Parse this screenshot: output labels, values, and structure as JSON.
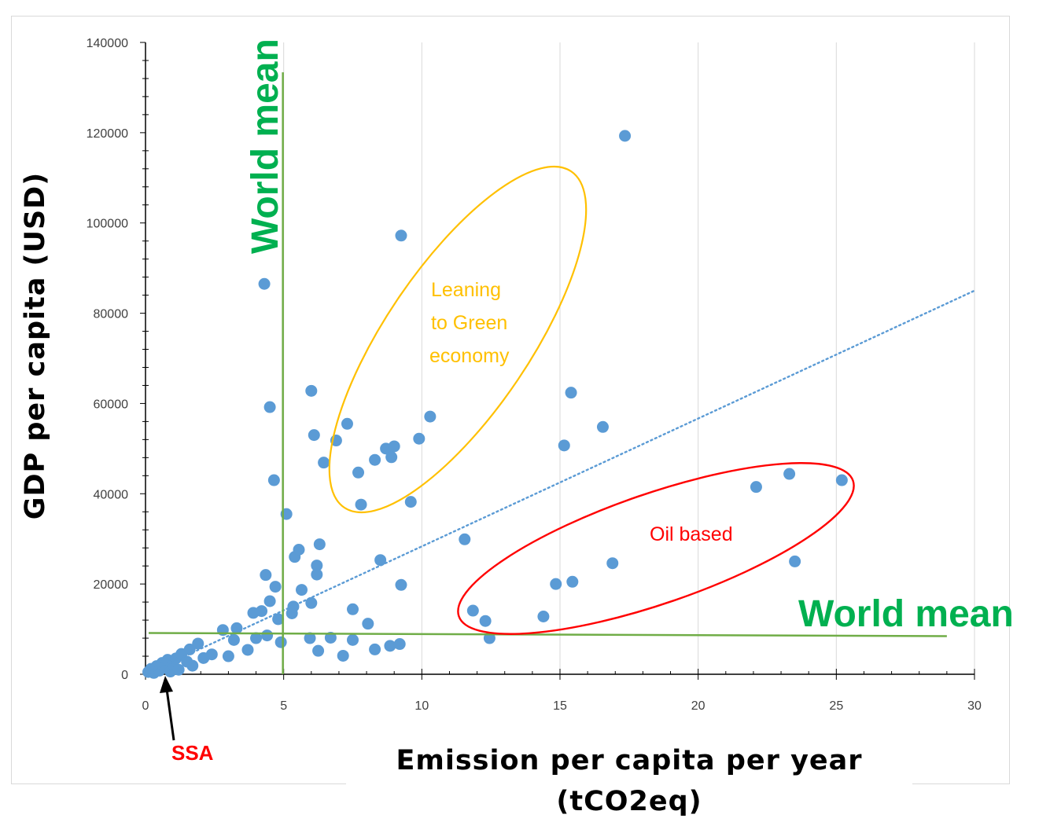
{
  "chart_data": {
    "type": "scatter",
    "xlabel": "Emission per capita per year (tCO2eq)",
    "ylabel": "GDP per capita (USD)",
    "xlim": [
      0,
      30
    ],
    "ylim": [
      0,
      140000
    ],
    "x_ticks": [
      0,
      5,
      10,
      15,
      20,
      25,
      30
    ],
    "y_ticks": [
      0,
      20000,
      40000,
      60000,
      80000,
      100000,
      120000,
      140000
    ],
    "grid": "vertical",
    "point_color": "#5b9bd5",
    "trendline": {
      "style": "dotted",
      "color": "#5b9bd5",
      "from": [
        0,
        0
      ],
      "to": [
        30,
        85000
      ]
    },
    "points": [
      [
        0.1,
        500
      ],
      [
        0.2,
        1200
      ],
      [
        0.3,
        300
      ],
      [
        0.4,
        1800
      ],
      [
        0.5,
        800
      ],
      [
        0.6,
        2500
      ],
      [
        0.7,
        1500
      ],
      [
        0.8,
        3200
      ],
      [
        0.9,
        600
      ],
      [
        1.0,
        2100
      ],
      [
        1.1,
        3500
      ],
      [
        1.2,
        1000
      ],
      [
        1.3,
        4500
      ],
      [
        1.5,
        2800
      ],
      [
        1.6,
        5500
      ],
      [
        1.7,
        1900
      ],
      [
        1.9,
        6800
      ],
      [
        2.1,
        3600
      ],
      [
        2.4,
        4400
      ],
      [
        2.8,
        9800
      ],
      [
        3.0,
        4000
      ],
      [
        3.2,
        7600
      ],
      [
        3.3,
        10200
      ],
      [
        3.7,
        5400
      ],
      [
        3.9,
        13600
      ],
      [
        4.0,
        8000
      ],
      [
        4.2,
        14000
      ],
      [
        4.3,
        86500
      ],
      [
        4.35,
        22000
      ],
      [
        4.4,
        8600
      ],
      [
        4.5,
        59200
      ],
      [
        4.5,
        16200
      ],
      [
        4.65,
        43000
      ],
      [
        4.7,
        19400
      ],
      [
        4.8,
        12200
      ],
      [
        4.9,
        7100
      ],
      [
        5.1,
        35500
      ],
      [
        5.3,
        13500
      ],
      [
        5.35,
        15000
      ],
      [
        5.4,
        26000
      ],
      [
        5.55,
        27600
      ],
      [
        5.65,
        18700
      ],
      [
        5.95,
        8000
      ],
      [
        6.0,
        62800
      ],
      [
        6.0,
        15800
      ],
      [
        6.1,
        53000
      ],
      [
        6.2,
        24100
      ],
      [
        6.2,
        22100
      ],
      [
        6.25,
        5200
      ],
      [
        6.3,
        28800
      ],
      [
        6.45,
        46900
      ],
      [
        6.7,
        8100
      ],
      [
        6.9,
        51800
      ],
      [
        7.15,
        4100
      ],
      [
        7.3,
        55500
      ],
      [
        7.5,
        7600
      ],
      [
        7.5,
        14400
      ],
      [
        7.7,
        44700
      ],
      [
        7.8,
        37600
      ],
      [
        8.05,
        11200
      ],
      [
        8.3,
        47500
      ],
      [
        8.3,
        5500
      ],
      [
        8.5,
        25300
      ],
      [
        8.7,
        50000
      ],
      [
        8.85,
        6300
      ],
      [
        8.9,
        48100
      ],
      [
        9.0,
        50500
      ],
      [
        9.2,
        6700
      ],
      [
        9.25,
        97200
      ],
      [
        9.25,
        19800
      ],
      [
        9.6,
        38200
      ],
      [
        9.9,
        52200
      ],
      [
        10.3,
        57100
      ],
      [
        11.55,
        29900
      ],
      [
        11.85,
        14100
      ],
      [
        12.3,
        11800
      ],
      [
        12.45,
        8000
      ],
      [
        14.4,
        12800
      ],
      [
        14.85,
        20000
      ],
      [
        15.15,
        50700
      ],
      [
        15.4,
        62400
      ],
      [
        15.45,
        20500
      ],
      [
        16.55,
        54800
      ],
      [
        16.9,
        24600
      ],
      [
        17.35,
        119300
      ],
      [
        22.1,
        41500
      ],
      [
        23.3,
        44400
      ],
      [
        23.5,
        25000
      ],
      [
        25.2,
        43000
      ]
    ],
    "world_mean_x": 5,
    "world_mean_y": 9500,
    "annotations": {
      "world_mean_vertical": "World mean",
      "world_mean_horizontal": "World mean",
      "green_group": "Leaning to Green economy",
      "green_line1": "Leaning",
      "green_line2": "to Green",
      "green_line3": "economy",
      "oil_group": "Oil based",
      "ssa": "SSA"
    },
    "colors": {
      "mean_line": "#70ad47",
      "mean_label": "#00b050",
      "green_ellipse": "#ffc000",
      "oil": "#ff0000",
      "ssa": "#ff0000"
    }
  }
}
